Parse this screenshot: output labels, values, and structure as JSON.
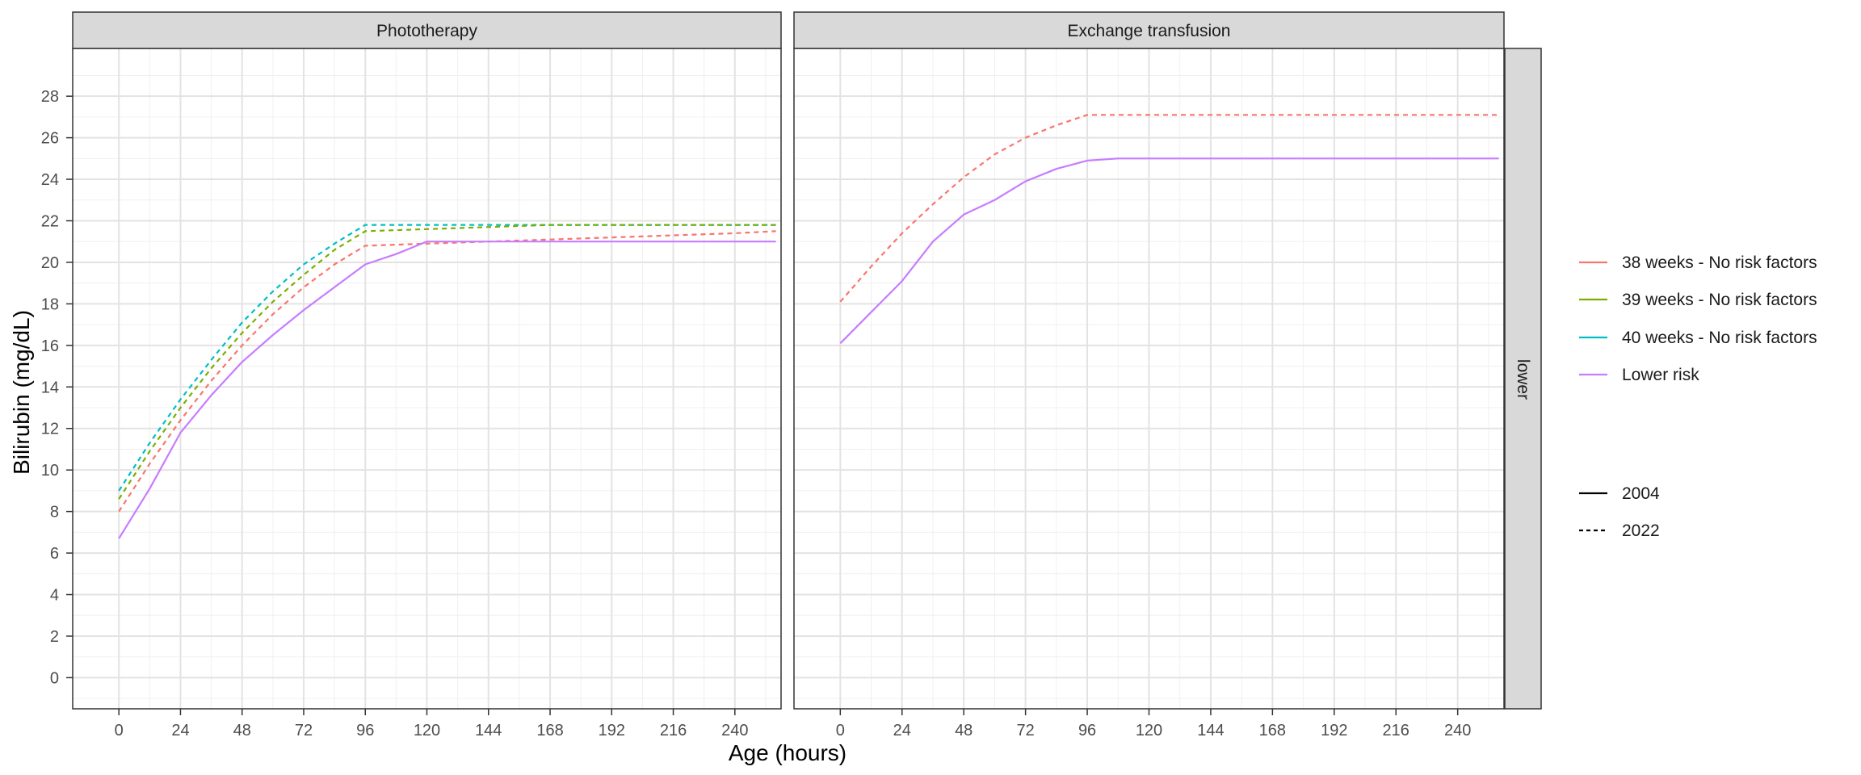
{
  "chart_data": {
    "type": "line",
    "xlabel": "Age (hours)",
    "ylabel": "Bilirubin (mg/dL)",
    "facet_row_label": "lower",
    "xlim": [
      -18,
      258
    ],
    "ylim": [
      -1.5,
      30.3
    ],
    "x_ticks": [
      0,
      24,
      48,
      72,
      96,
      120,
      144,
      168,
      192,
      216,
      240
    ],
    "y_ticks": [
      0,
      2,
      4,
      6,
      8,
      10,
      12,
      14,
      16,
      18,
      20,
      22,
      24,
      26,
      28
    ],
    "grid": true,
    "legend_position": "right",
    "legend": {
      "color_entries": [
        {
          "label": "38 weeks - No risk factors",
          "color": "#F8766D"
        },
        {
          "label": "39 weeks - No risk factors",
          "color": "#7CAE00"
        },
        {
          "label": "40 weeks - No risk factors",
          "color": "#00BFC4"
        },
        {
          "label": "Lower risk",
          "color": "#C77CFF"
        }
      ],
      "linetype_entries": [
        {
          "label": "2004",
          "linetype": "solid"
        },
        {
          "label": "2022",
          "linetype": "dashed"
        }
      ]
    },
    "panels": [
      {
        "title": "Phototherapy",
        "series": [
          {
            "name": "40 weeks - No risk factors",
            "year": "2022",
            "color": "#00BFC4",
            "dash": true,
            "x": [
              0,
              12,
              24,
              36,
              48,
              60,
              72,
              84,
              96,
              120,
              144,
              168,
              192,
              216,
              240,
              256
            ],
            "y": [
              9.0,
              11.3,
              13.4,
              15.3,
              17.1,
              18.6,
              19.9,
              20.9,
              21.8,
              21.8,
              21.8,
              21.8,
              21.8,
              21.8,
              21.8,
              21.8
            ]
          },
          {
            "name": "39 weeks - No risk factors",
            "year": "2022",
            "color": "#7CAE00",
            "dash": true,
            "x": [
              0,
              12,
              24,
              36,
              48,
              60,
              72,
              84,
              96,
              120,
              144,
              168,
              192,
              216,
              240,
              256
            ],
            "y": [
              8.6,
              10.9,
              13.0,
              14.9,
              16.6,
              18.1,
              19.4,
              20.6,
              21.5,
              21.6,
              21.7,
              21.8,
              21.8,
              21.8,
              21.8,
              21.8
            ]
          },
          {
            "name": "38 weeks - No risk factors",
            "year": "2022",
            "color": "#F8766D",
            "dash": true,
            "x": [
              0,
              12,
              24,
              36,
              48,
              60,
              72,
              84,
              96,
              120,
              144,
              168,
              192,
              216,
              240,
              256
            ],
            "y": [
              8.0,
              10.3,
              12.4,
              14.3,
              16.0,
              17.5,
              18.8,
              19.9,
              20.8,
              20.9,
              21.0,
              21.1,
              21.2,
              21.3,
              21.4,
              21.5
            ]
          },
          {
            "name": "Lower risk",
            "year": "2004",
            "color": "#C77CFF",
            "dash": false,
            "x": [
              0,
              12,
              24,
              36,
              48,
              60,
              72,
              84,
              96,
              108,
              120,
              144,
              168,
              192,
              216,
              240,
              256
            ],
            "y": [
              6.7,
              9.1,
              11.8,
              13.6,
              15.2,
              16.5,
              17.7,
              18.8,
              19.9,
              20.4,
              21.0,
              21.0,
              21.0,
              21.0,
              21.0,
              21.0,
              21.0
            ]
          }
        ]
      },
      {
        "title": "Exchange transfusion",
        "series": [
          {
            "name": "38 weeks - No risk factors",
            "year": "2022",
            "color": "#F8766D",
            "dash": true,
            "x": [
              0,
              12,
              24,
              36,
              48,
              60,
              72,
              84,
              96,
              120,
              144,
              168,
              192,
              216,
              240,
              256
            ],
            "y": [
              18.1,
              19.8,
              21.4,
              22.8,
              24.1,
              25.2,
              26.0,
              26.6,
              27.1,
              27.1,
              27.1,
              27.1,
              27.1,
              27.1,
              27.1,
              27.1
            ]
          },
          {
            "name": "Lower risk",
            "year": "2004",
            "color": "#C77CFF",
            "dash": false,
            "x": [
              0,
              12,
              24,
              36,
              48,
              60,
              72,
              84,
              96,
              108,
              120,
              144,
              168,
              192,
              216,
              240,
              256
            ],
            "y": [
              16.1,
              17.6,
              19.1,
              21.0,
              22.3,
              23.0,
              23.9,
              24.5,
              24.9,
              25.0,
              25.0,
              25.0,
              25.0,
              25.0,
              25.0,
              25.0,
              25.0
            ]
          }
        ]
      }
    ]
  }
}
